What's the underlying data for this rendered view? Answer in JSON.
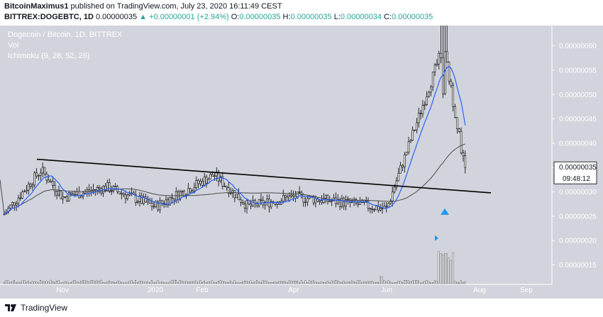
{
  "header": {
    "author": "BitcoinMaximus1",
    "published_text": "published on TradingView.com, July 23, 2020 16:11:49 CEST",
    "symbol": "BITTREX:DOGEBTC, 1D",
    "last": "0.00000035",
    "change_arrow": "▲",
    "change": "+0.00000001 (+2.94%)",
    "o_label": "O:",
    "o_value": "0.00000035",
    "h_label": "H:",
    "h_value": "0.00000035",
    "l_label": "L:",
    "l_value": "0.00000034",
    "c_label": "C:",
    "c_value": "0.00000035"
  },
  "chart_overlay": {
    "title": "Dogecoin / Bitcoin, 1D, BITTREX",
    "vol_label": "Vol",
    "indicator_label": "Ichimoku (9, 26, 52, 26)"
  },
  "chart_data": {
    "type": "candlestick",
    "y_axis": {
      "ticks": [
        "0.00000060",
        "0.00000055",
        "0.00000050",
        "0.00000045",
        "0.00000040",
        "0.00000035",
        "0.00000030",
        "0.00000025",
        "0.00000020",
        "0.00000015"
      ],
      "ylim": [
        1.1e-07,
        6.3e-07
      ]
    },
    "x_axis": {
      "ticks": [
        "Nov",
        "2020",
        "Feb",
        "Apr",
        "Jun",
        "Aug",
        "Sep"
      ]
    },
    "last_price": "0.00000035",
    "countdown": "09:48:12",
    "trendline": {
      "start": [
        "Oct 2019",
        3.67e-07
      ],
      "end": [
        "Aug 2020",
        2.98e-07
      ]
    },
    "approx_price_series": [
      {
        "t": "Sep 2019",
        "close": 2.53e-07
      },
      {
        "t": "Oct 2019",
        "close": 3.45e-07
      },
      {
        "t": "Nov 2019",
        "close": 2.89e-07
      },
      {
        "t": "Dec 2019",
        "close": 3.1e-07
      },
      {
        "t": "Jan 2020",
        "close": 2.7e-07
      },
      {
        "t": "Feb 2020",
        "close": 3.35e-07
      },
      {
        "t": "Mar 2020",
        "close": 2.7e-07
      },
      {
        "t": "Apr 2020",
        "close": 2.9e-07
      },
      {
        "t": "May 2020",
        "close": 2.8e-07
      },
      {
        "t": "Jun 2020",
        "close": 2.65e-07
      },
      {
        "t": "Jul 2020",
        "close": 6e-07
      },
      {
        "t": "Jul 23 2020",
        "close": 3.5e-07
      }
    ]
  },
  "colors": {
    "chart_bg": "#d1d4dc",
    "candle_fill": "#ffffff",
    "candle_stroke": "#000000",
    "ichimoku_line": "#2962ff",
    "slow_line": "#4a4a4a",
    "trendline": "#000000",
    "signal_arrow": "#2196f3",
    "change_color": "#26a69a"
  },
  "footer": {
    "logo_text": "TradingView"
  }
}
